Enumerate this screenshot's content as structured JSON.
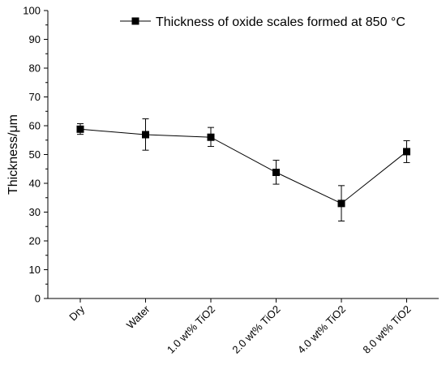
{
  "chart_data": {
    "type": "line",
    "categories": [
      "Dry",
      "Water",
      "1.0 wt% TiO2",
      "2.0 wt% TiO2",
      "4.0 wt% TiO2",
      "8.0 wt% TiO2"
    ],
    "series": [
      {
        "name": "Thickness of oxide scales formed at 850 °C",
        "values": [
          58.8,
          56.9,
          56.0,
          43.8,
          33.0,
          51.0
        ],
        "error_low": [
          57.0,
          51.5,
          52.8,
          39.7,
          26.9,
          47.2
        ],
        "error_high": [
          60.7,
          62.4,
          59.4,
          48.0,
          39.2,
          54.8
        ],
        "color": "#000000",
        "marker": "square"
      }
    ],
    "xlabel": "",
    "ylabel": "Thickness/μm",
    "ylim": [
      0,
      100
    ],
    "yticks": [
      0,
      10,
      20,
      30,
      40,
      50,
      60,
      70,
      80,
      90,
      100
    ],
    "grid": false,
    "legend_position": "top-right"
  }
}
